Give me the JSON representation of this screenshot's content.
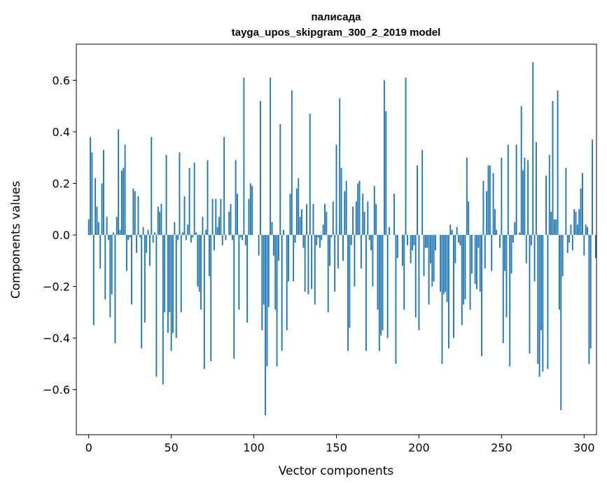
{
  "chart_data": {
    "type": "bar",
    "title": "палисада",
    "subtitle": "tayga_upos_skipgram_300_2_2019 model",
    "xlabel": "Vector components",
    "ylabel": "Components values",
    "xlim": [
      -7.5,
      307.5
    ],
    "ylim": [
      -0.775,
      0.74
    ],
    "xticks": [
      0,
      50,
      100,
      150,
      200,
      250,
      300
    ],
    "xtick_labels": [
      "0",
      "50",
      "100",
      "150",
      "200",
      "250",
      "300"
    ],
    "yticks": [
      -0.6,
      -0.4,
      -0.2,
      0.0,
      0.2,
      0.4,
      0.6
    ],
    "ytick_labels": [
      "−0.6",
      "−0.4",
      "−0.2",
      "0.0",
      "0.2",
      "0.4",
      "0.6"
    ],
    "bar_color": "#1f77b4",
    "grid": false,
    "values": [
      0.06,
      0.38,
      0.32,
      -0.35,
      0.22,
      0.11,
      0.05,
      -0.13,
      0.2,
      0.33,
      -0.25,
      0.07,
      -0.02,
      -0.32,
      -0.23,
      0.01,
      -0.42,
      0.07,
      0.41,
      0.02,
      0.25,
      0.26,
      0.35,
      -0.14,
      -0.02,
      -0.01,
      -0.27,
      0.18,
      0.17,
      -0.07,
      0.15,
      -0.01,
      -0.44,
      0.03,
      -0.34,
      -0.07,
      0.02,
      -0.12,
      0.38,
      -0.03,
      0.01,
      -0.55,
      0.11,
      0.09,
      0.12,
      -0.58,
      -0.3,
      0.31,
      -0.38,
      -0.3,
      -0.45,
      -0.38,
      0.05,
      -0.4,
      -0.02,
      0.32,
      -0.3,
      0.01,
      0.15,
      -0.02,
      0.04,
      0.26,
      -0.03,
      -0.01,
      0.28,
      0.01,
      -0.2,
      -0.22,
      -0.29,
      0.07,
      -0.52,
      0.02,
      0.29,
      -0.16,
      -0.49,
      0.14,
      -0.06,
      0.14,
      0.03,
      0.07,
      0.14,
      -0.04,
      0.38,
      -0.02,
      0.0,
      0.09,
      0.12,
      -0.02,
      -0.48,
      0.29,
      0.16,
      -0.29,
      -0.01,
      -0.02,
      0.61,
      -0.04,
      -0.34,
      0.14,
      0.2,
      0.19,
      0.0,
      0.0,
      0.0,
      -0.08,
      0.52,
      -0.37,
      -0.27,
      -0.7,
      -0.51,
      -0.28,
      0.61,
      0.05,
      -0.08,
      -0.29,
      -0.51,
      -0.1,
      0.43,
      -0.45,
      0.02,
      0.0,
      -0.37,
      -0.18,
      0.16,
      0.56,
      -0.18,
      -0.03,
      0.18,
      0.22,
      0.07,
      0.1,
      -0.05,
      -0.22,
      0.12,
      -0.23,
      0.47,
      -0.21,
      0.12,
      -0.27,
      -0.04,
      -0.01,
      -0.05,
      -0.02,
      0.04,
      0.12,
      0.09,
      -0.3,
      -0.12,
      -0.01,
      0.13,
      -0.22,
      0.35,
      -0.13,
      0.53,
      0.26,
      -0.1,
      0.17,
      0.21,
      -0.45,
      -0.36,
      -0.04,
      0.11,
      -0.2,
      0.13,
      0.2,
      0.21,
      -0.13,
      0.16,
      0.09,
      -0.45,
      0.13,
      -0.02,
      -0.06,
      -0.2,
      0.19,
      0.12,
      -0.29,
      -0.45,
      -0.39,
      -0.37,
      0.6,
      0.48,
      -0.4,
      0.03,
      0.0,
      0.0,
      0.16,
      -0.5,
      -0.09,
      0.0,
      0.0,
      -0.12,
      -0.29,
      0.61,
      -0.04,
      0.0,
      -0.11,
      -0.06,
      -0.04,
      -0.32,
      0.27,
      -0.37,
      0.0,
      0.33,
      -0.16,
      -0.05,
      -0.05,
      -0.27,
      -0.11,
      -0.2,
      -0.18,
      -0.06,
      0.0,
      0.0,
      -0.22,
      -0.5,
      -0.23,
      -0.22,
      -0.26,
      -0.44,
      0.04,
      0.02,
      -0.4,
      -0.11,
      0.03,
      -0.03,
      -0.04,
      -0.35,
      -0.27,
      -0.25,
      0.3,
      0.13,
      -0.29,
      -0.15,
      0.0,
      -0.19,
      -0.21,
      -0.05,
      -0.22,
      -0.47,
      0.21,
      -0.13,
      0.17,
      0.27,
      0.27,
      -0.14,
      0.24,
      0.1,
      0.02,
      0.0,
      -0.05,
      0.3,
      -0.42,
      -0.14,
      -0.32,
      0.35,
      -0.51,
      -0.15,
      -0.03,
      0.05,
      0.35,
      0.0,
      0.01,
      0.5,
      0.25,
      0.3,
      -0.11,
      0.29,
      -0.46,
      -0.04,
      0.67,
      -0.18,
      0.36,
      -0.5,
      -0.55,
      -0.37,
      -0.53,
      0.0,
      0.23,
      -0.52,
      0.31,
      0.09,
      0.52,
      0.06,
      0.06,
      0.56,
      -0.29,
      -0.68,
      -0.16,
      0.0,
      0.26,
      -0.07,
      -0.03,
      0.04,
      -0.06,
      0.1,
      0.09,
      0.04,
      0.1,
      0.18,
      0.24,
      -0.08,
      0.04,
      0.03,
      -0.5,
      -0.44,
      0.37,
      0.0,
      -0.09
    ]
  }
}
